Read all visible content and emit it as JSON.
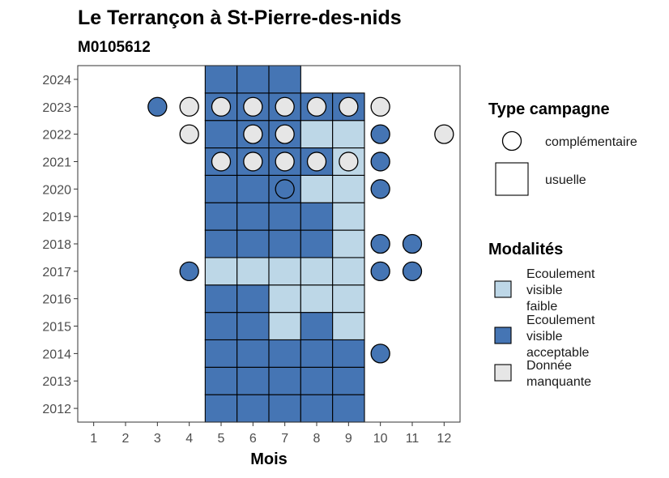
{
  "chart_data": {
    "type": "heatmap",
    "title": "Le Terrançon à St-Pierre-des-nids",
    "subtitle": "M0105612",
    "xlabel": "Mois",
    "ylabel": "",
    "x_ticks": [
      1,
      2,
      3,
      4,
      5,
      6,
      7,
      8,
      9,
      10,
      11,
      12
    ],
    "y_ticks": [
      2012,
      2013,
      2014,
      2015,
      2016,
      2017,
      2018,
      2019,
      2020,
      2021,
      2022,
      2023,
      2024
    ],
    "xlim": [
      0.5,
      12.5
    ],
    "ylim": [
      2011.5,
      2024.5
    ],
    "grid": false,
    "colors": {
      "faible": "#bdd7e7",
      "acceptable": "#4575b4",
      "manquante": "#e6e6e6",
      "outline": "#000000"
    },
    "legend_position": "right",
    "legends": [
      {
        "title": "Type campagne",
        "items": [
          {
            "key": "complementaire",
            "label": "complémentaire",
            "shape": "circle"
          },
          {
            "key": "usuelle",
            "label": "usuelle",
            "shape": "square"
          }
        ]
      },
      {
        "title": "Modalités",
        "items": [
          {
            "key": "faible",
            "label": [
              "Ecoulement",
              "visible",
              "faible"
            ]
          },
          {
            "key": "acceptable",
            "label": [
              "Ecoulement",
              "visible",
              "acceptable"
            ]
          },
          {
            "key": "manquante",
            "label": [
              "Donnée",
              "manquante"
            ]
          }
        ]
      }
    ],
    "usuelle": [
      {
        "year": 2012,
        "months": {
          "5": "acceptable",
          "6": "acceptable",
          "7": "acceptable",
          "8": "acceptable",
          "9": "acceptable"
        }
      },
      {
        "year": 2013,
        "months": {
          "5": "acceptable",
          "6": "acceptable",
          "7": "acceptable",
          "8": "acceptable",
          "9": "acceptable"
        }
      },
      {
        "year": 2014,
        "months": {
          "5": "acceptable",
          "6": "acceptable",
          "7": "acceptable",
          "8": "acceptable",
          "9": "acceptable"
        }
      },
      {
        "year": 2015,
        "months": {
          "5": "acceptable",
          "6": "acceptable",
          "7": "faible",
          "8": "acceptable",
          "9": "faible"
        }
      },
      {
        "year": 2016,
        "months": {
          "5": "acceptable",
          "6": "acceptable",
          "7": "faible",
          "8": "faible",
          "9": "faible"
        }
      },
      {
        "year": 2017,
        "months": {
          "5": "faible",
          "6": "faible",
          "7": "faible",
          "8": "faible",
          "9": "faible"
        }
      },
      {
        "year": 2018,
        "months": {
          "5": "acceptable",
          "6": "acceptable",
          "7": "acceptable",
          "8": "acceptable",
          "9": "faible"
        }
      },
      {
        "year": 2019,
        "months": {
          "5": "acceptable",
          "6": "acceptable",
          "7": "acceptable",
          "8": "acceptable",
          "9": "faible"
        }
      },
      {
        "year": 2020,
        "months": {
          "5": "acceptable",
          "6": "acceptable",
          "7": "acceptable",
          "8": "faible",
          "9": "faible"
        }
      },
      {
        "year": 2021,
        "months": {
          "5": "acceptable",
          "6": "acceptable",
          "7": "acceptable",
          "8": "acceptable",
          "9": "faible"
        }
      },
      {
        "year": 2022,
        "months": {
          "5": "acceptable",
          "6": "acceptable",
          "7": "acceptable",
          "8": "faible",
          "9": "faible"
        }
      },
      {
        "year": 2023,
        "months": {
          "5": "acceptable",
          "6": "acceptable",
          "7": "acceptable",
          "8": "acceptable",
          "9": "acceptable"
        }
      },
      {
        "year": 2024,
        "months": {
          "5": "acceptable",
          "6": "acceptable",
          "7": "acceptable"
        }
      }
    ],
    "complementaire": [
      {
        "year": 2023,
        "months": {
          "3": "acceptable",
          "4": "manquante",
          "5": "manquante",
          "6": "manquante",
          "7": "manquante",
          "8": "manquante",
          "9": "manquante",
          "10": "manquante"
        }
      },
      {
        "year": 2022,
        "months": {
          "4": "manquante",
          "6": "manquante",
          "7": "manquante",
          "10": "acceptable",
          "12": "manquante"
        }
      },
      {
        "year": 2021,
        "months": {
          "5": "manquante",
          "6": "manquante",
          "7": "manquante",
          "8": "manquante",
          "9": "manquante",
          "10": "acceptable"
        }
      },
      {
        "year": 2020,
        "months": {
          "7": "acceptable",
          "10": "acceptable"
        }
      },
      {
        "year": 2018,
        "months": {
          "10": "acceptable",
          "11": "acceptable"
        }
      },
      {
        "year": 2017,
        "months": {
          "4": "acceptable",
          "10": "acceptable",
          "11": "acceptable"
        }
      },
      {
        "year": 2014,
        "months": {
          "10": "acceptable"
        }
      }
    ]
  }
}
